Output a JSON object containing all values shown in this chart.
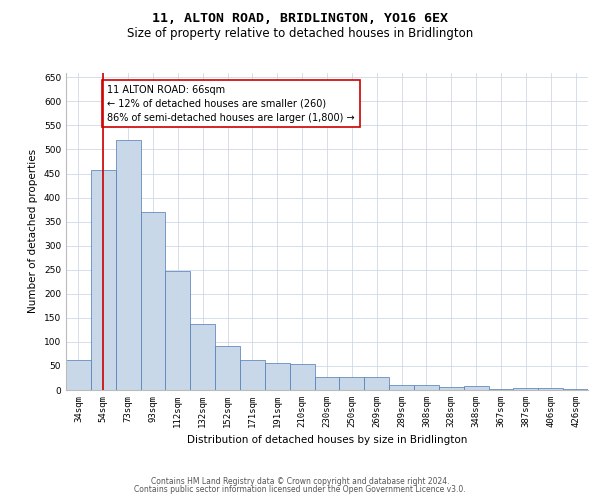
{
  "title": "11, ALTON ROAD, BRIDLINGTON, YO16 6EX",
  "subtitle": "Size of property relative to detached houses in Bridlington",
  "xlabel": "Distribution of detached houses by size in Bridlington",
  "ylabel": "Number of detached properties",
  "categories": [
    "34sqm",
    "54sqm",
    "73sqm",
    "93sqm",
    "112sqm",
    "132sqm",
    "152sqm",
    "171sqm",
    "191sqm",
    "210sqm",
    "230sqm",
    "250sqm",
    "269sqm",
    "289sqm",
    "308sqm",
    "328sqm",
    "348sqm",
    "367sqm",
    "387sqm",
    "406sqm",
    "426sqm"
  ],
  "values": [
    62,
    458,
    520,
    370,
    248,
    138,
    92,
    62,
    57,
    55,
    27,
    26,
    26,
    11,
    11,
    6,
    8,
    3,
    4,
    4,
    3
  ],
  "bar_color": "#c8d8e8",
  "bar_edge_color": "#4a7ab5",
  "vline_x": 1,
  "vline_color": "#cc0000",
  "annotation_text": "11 ALTON ROAD: 66sqm\n← 12% of detached houses are smaller (260)\n86% of semi-detached houses are larger (1,800) →",
  "annotation_box_color": "#ffffff",
  "annotation_box_edge_color": "#cc0000",
  "ylim": [
    0,
    660
  ],
  "yticks": [
    0,
    50,
    100,
    150,
    200,
    250,
    300,
    350,
    400,
    450,
    500,
    550,
    600,
    650
  ],
  "background_color": "#ffffff",
  "grid_color": "#d0d8e8",
  "footer_line1": "Contains HM Land Registry data © Crown copyright and database right 2024.",
  "footer_line2": "Contains public sector information licensed under the Open Government Licence v3.0.",
  "title_fontsize": 9.5,
  "subtitle_fontsize": 8.5,
  "axis_label_fontsize": 7.5,
  "tick_fontsize": 6.5,
  "annotation_fontsize": 7,
  "footer_fontsize": 5.5
}
